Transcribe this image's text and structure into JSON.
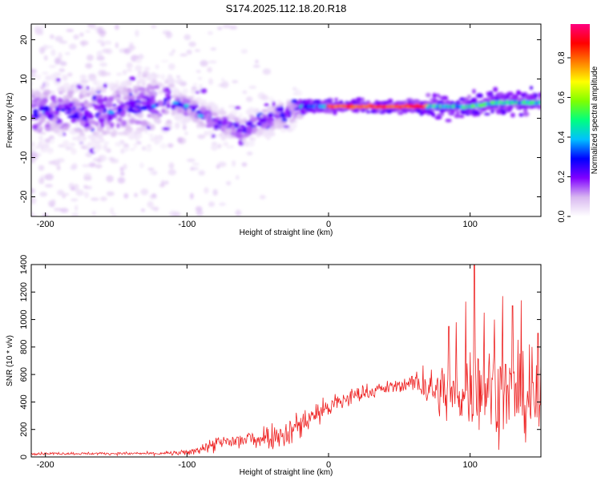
{
  "title": "S174.2025.112.18.20.R18",
  "chart_data": [
    {
      "type": "heatmap",
      "xlabel": "Height of straight line (km)",
      "ylabel": "Frequency (Hz)",
      "xlim": [
        -210,
        150
      ],
      "ylim": [
        -25,
        24
      ],
      "xticks": [
        -200,
        -100,
        0,
        100
      ],
      "yticks": [
        -20,
        -10,
        0,
        10,
        20
      ],
      "colorbar": {
        "label": "Normalized spectral amplitude",
        "range": [
          0,
          0.97
        ],
        "ticks": [
          0.0,
          0.2,
          0.4,
          0.6,
          0.8
        ],
        "tick_labels": [
          "0.0",
          "0.2",
          "0.4",
          "0.6",
          "0.8"
        ],
        "colormap": [
          "#ffffff",
          "#d8b8f0",
          "#8000ff",
          "#0000ff",
          "#00c0ff",
          "#00ff80",
          "#80ff00",
          "#ffff00",
          "#ff8000",
          "#ff0000",
          "#ff0080"
        ]
      },
      "ridges": [
        {
          "x": [
            -210,
            -190,
            -170,
            -150,
            -130,
            -120,
            -110,
            -100,
            -90,
            -80,
            -70,
            -60,
            -50,
            -40,
            -30,
            -20
          ],
          "freq": [
            1,
            2,
            1,
            2,
            3,
            4,
            4,
            3,
            1,
            -1,
            -2,
            -3,
            -1,
            0,
            1,
            3
          ],
          "amplitude": 0.18
        },
        {
          "x": [
            -20,
            0,
            20,
            40,
            60,
            70,
            80,
            100,
            120,
            150
          ],
          "freq": [
            3,
            3,
            3,
            3,
            3,
            3,
            3,
            3,
            4,
            4
          ],
          "amplitude": 0.9
        }
      ]
    },
    {
      "type": "line",
      "xlabel": "Height of straight line (km)",
      "ylabel": "SNR (10 * v/v)",
      "xlim": [
        -210,
        150
      ],
      "ylim": [
        0,
        1400
      ],
      "xticks": [
        -200,
        -100,
        0,
        100
      ],
      "yticks": [
        0,
        200,
        400,
        600,
        800,
        1000,
        1200,
        1400
      ],
      "color": "#ee2222",
      "envelope": {
        "x": [
          -210,
          -180,
          -150,
          -120,
          -100,
          -90,
          -80,
          -70,
          -60,
          -50,
          -40,
          -30,
          -20,
          -10,
          0,
          10,
          20,
          30,
          40,
          50,
          60,
          70,
          80,
          90,
          100,
          110,
          120,
          130,
          140,
          150
        ],
        "mean": [
          25,
          25,
          25,
          25,
          30,
          60,
          90,
          110,
          120,
          140,
          160,
          170,
          240,
          310,
          360,
          410,
          450,
          480,
          500,
          520,
          540,
          500,
          470,
          450,
          500,
          520,
          480,
          440,
          420,
          400
        ],
        "spread": [
          12,
          12,
          12,
          15,
          25,
          50,
          70,
          90,
          100,
          110,
          120,
          130,
          150,
          120,
          110,
          100,
          80,
          70,
          60,
          60,
          80,
          150,
          250,
          300,
          380,
          400,
          400,
          380,
          350,
          350
        ]
      },
      "peaks": [
        {
          "x": 103,
          "y": 1400
        },
        {
          "x": 97,
          "y": 1130
        },
        {
          "x": 110,
          "y": 1050
        },
        {
          "x": 123,
          "y": 1170
        },
        {
          "x": 130,
          "y": 1100
        },
        {
          "x": 136,
          "y": 1140
        },
        {
          "x": 148,
          "y": 900
        },
        {
          "x": 90,
          "y": 980
        },
        {
          "x": 117,
          "y": 1000
        },
        {
          "x": 85,
          "y": 950
        }
      ]
    }
  ]
}
